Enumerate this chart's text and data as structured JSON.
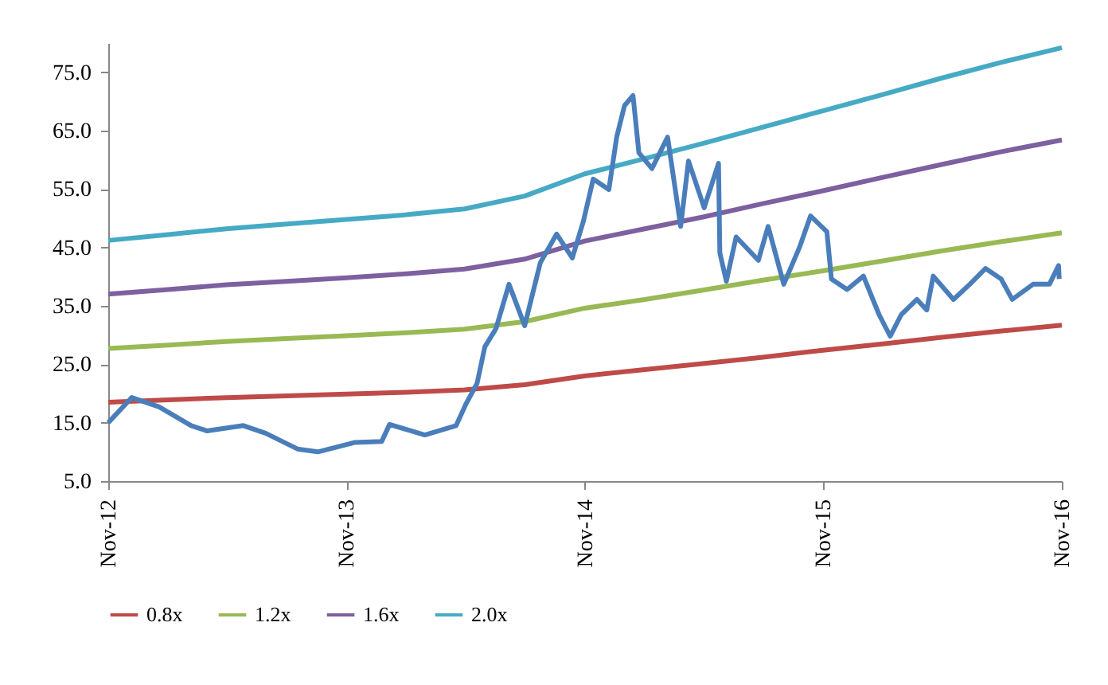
{
  "chart_data": {
    "type": "line",
    "xlim": [
      "2012-11-01",
      "2016-11-01"
    ],
    "xticks": [
      {
        "value": "2012-11-01",
        "label": "Nov-12"
      },
      {
        "value": "2013-11-01",
        "label": "Nov-13"
      },
      {
        "value": "2014-11-01",
        "label": "Nov-14"
      },
      {
        "value": "2015-11-01",
        "label": "Nov-15"
      },
      {
        "value": "2016-11-01",
        "label": "Nov-16"
      }
    ],
    "ylim": [
      5,
      80
    ],
    "yticks": [
      {
        "value": 5,
        "label": "5.0"
      },
      {
        "value": 15,
        "label": "15.0"
      },
      {
        "value": 25,
        "label": "25.0"
      },
      {
        "value": 35,
        "label": "35.0"
      },
      {
        "value": 45,
        "label": "45.0"
      },
      {
        "value": 55,
        "label": "55.0"
      },
      {
        "value": 65,
        "label": "65.0"
      },
      {
        "value": 75,
        "label": "75.0"
      }
    ],
    "grid": false,
    "legend": "bottom",
    "marker": "none",
    "line_style": "solid",
    "series": [
      {
        "color": "#4a7ebb",
        "x": [
          "2012-11-01",
          "2012-12-07",
          "2013-01-18",
          "2013-03-08",
          "2013-04-01",
          "2013-05-27",
          "2013-06-30",
          "2013-08-18",
          "2013-09-18",
          "2013-11-13",
          "2013-12-25",
          "2014-01-06",
          "2014-03-01",
          "2014-04-18",
          "2014-05-03",
          "2014-05-20",
          "2014-06-01",
          "2014-06-18",
          "2014-07-08",
          "2014-08-01",
          "2014-08-25",
          "2014-09-19",
          "2014-10-13",
          "2014-10-30",
          "2014-11-14",
          "2014-12-08",
          "2014-12-20",
          "2015-01-01",
          "2015-01-14",
          "2015-01-23",
          "2015-02-12",
          "2015-03-08",
          "2015-03-28",
          "2015-04-09",
          "2015-05-03",
          "2015-05-25",
          "2015-05-27",
          "2015-06-06",
          "2015-06-21",
          "2015-07-25",
          "2015-08-09",
          "2015-09-02",
          "2015-09-26",
          "2015-10-13",
          "2015-11-07",
          "2015-11-14",
          "2015-12-08",
          "2016-01-02",
          "2016-01-26",
          "2016-02-12",
          "2016-02-29",
          "2016-03-24",
          "2016-04-08",
          "2016-04-18",
          "2016-05-19",
          "2016-06-13",
          "2016-07-07",
          "2016-07-31",
          "2016-08-17",
          "2016-09-18",
          "2016-10-13",
          "2016-10-27",
          "2016-10-28"
        ],
        "values": [
          15.0,
          19.3,
          17.7,
          14.5,
          13.6,
          14.5,
          13.2,
          10.5,
          10.0,
          11.6,
          11.8,
          14.7,
          12.9,
          14.5,
          18.2,
          21.7,
          28.0,
          31.1,
          38.7,
          31.6,
          42.4,
          47.3,
          43.2,
          49.5,
          56.7,
          54.9,
          63.9,
          69.3,
          71.0,
          61.2,
          58.5,
          63.9,
          48.6,
          59.8,
          51.8,
          59.4,
          44.1,
          39.2,
          46.8,
          42.8,
          48.6,
          38.7,
          45.0,
          50.4,
          47.7,
          39.6,
          37.8,
          40.1,
          33.5,
          29.8,
          33.5,
          36.1,
          34.3,
          40.1,
          36.1,
          38.7,
          41.4,
          39.6,
          36.1,
          38.7,
          38.7,
          41.9,
          39.6
        ]
      },
      {
        "name": "0.8x",
        "color": "#be4b48",
        "x": [
          "2012-11-01",
          "2013-02-01",
          "2013-05-01",
          "2013-08-01",
          "2013-11-01",
          "2014-02-01",
          "2014-05-01",
          "2014-08-01",
          "2014-11-01",
          "2015-02-01",
          "2015-05-01",
          "2015-08-01",
          "2015-11-01",
          "2016-02-01",
          "2016-05-01",
          "2016-08-01",
          "2016-11-01"
        ],
        "values": [
          18.5,
          18.9,
          19.3,
          19.6,
          19.9,
          20.2,
          20.6,
          21.5,
          23.0,
          24.1,
          25.1,
          26.2,
          27.4,
          28.5,
          29.6,
          30.7,
          31.7
        ]
      },
      {
        "name": "1.2x",
        "color": "#98b954",
        "x": [
          "2012-11-01",
          "2013-02-01",
          "2013-05-01",
          "2013-08-01",
          "2013-11-01",
          "2014-02-01",
          "2014-05-01",
          "2014-08-01",
          "2014-11-01",
          "2015-02-01",
          "2015-05-01",
          "2015-08-01",
          "2015-11-01",
          "2016-02-01",
          "2016-05-01",
          "2016-08-01",
          "2016-11-01"
        ],
        "values": [
          27.7,
          28.3,
          28.9,
          29.4,
          29.9,
          30.4,
          31.0,
          32.3,
          34.6,
          36.1,
          37.7,
          39.4,
          41.0,
          42.7,
          44.4,
          46.0,
          47.5
        ]
      },
      {
        "name": "1.6x",
        "color": "#7d60a0",
        "x": [
          "2012-11-01",
          "2013-02-01",
          "2013-05-01",
          "2013-08-01",
          "2013-11-01",
          "2014-02-01",
          "2014-05-01",
          "2014-08-01",
          "2014-11-01",
          "2015-02-01",
          "2015-05-01",
          "2015-08-01",
          "2015-11-01",
          "2016-02-01",
          "2016-05-01",
          "2016-08-01",
          "2016-11-01"
        ],
        "values": [
          37.0,
          37.8,
          38.6,
          39.2,
          39.8,
          40.5,
          41.3,
          43.0,
          46.1,
          48.2,
          50.2,
          52.5,
          54.7,
          57.0,
          59.2,
          61.4,
          63.4
        ]
      },
      {
        "name": "2.0x",
        "color": "#46aac5",
        "x": [
          "2012-11-01",
          "2013-02-01",
          "2013-05-01",
          "2013-08-01",
          "2013-11-01",
          "2014-02-01",
          "2014-05-01",
          "2014-08-01",
          "2014-11-01",
          "2015-02-01",
          "2015-05-01",
          "2015-08-01",
          "2015-11-01",
          "2016-02-01",
          "2016-05-01",
          "2016-08-01",
          "2016-11-01"
        ],
        "values": [
          46.2,
          47.2,
          48.2,
          49.0,
          49.8,
          50.6,
          51.6,
          53.8,
          57.6,
          60.2,
          62.8,
          65.6,
          68.4,
          71.2,
          74.0,
          76.7,
          79.2
        ]
      }
    ]
  }
}
